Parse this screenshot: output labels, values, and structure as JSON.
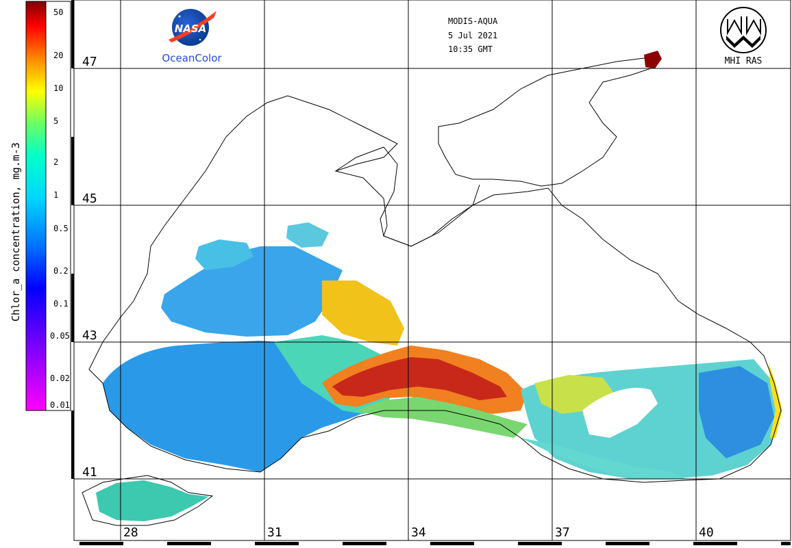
{
  "header": {
    "sensor": "MODIS-AQUA",
    "date": "5 Jul 2021",
    "time": "10:35 GMT"
  },
  "logos": {
    "nasa_text": "NASA",
    "oceancolor_text": "OceanColor",
    "mhi_text": "MHI RAS"
  },
  "colorbar": {
    "title": "Chlor_a concentration, mg.m-3",
    "ticks": [
      "50",
      "20",
      "10",
      "5",
      "2",
      "1",
      "0.5",
      "0.2",
      "0.1",
      "0.05",
      "0.02",
      "0.01"
    ],
    "colors": [
      "#ff00ff",
      "#8800ff",
      "#0000ff",
      "#0066ff",
      "#00ccff",
      "#00ffcc",
      "#66ff66",
      "#ffff00",
      "#ff8800",
      "#ff0000",
      "#880000"
    ]
  },
  "grid": {
    "latitudes": [
      "47",
      "45",
      "43",
      "41"
    ],
    "longitudes": [
      "28",
      "31",
      "34",
      "37",
      "40"
    ]
  },
  "colors": {
    "background": "#ffffff",
    "coast": "#000000",
    "nasa_blue": "#0b3d91",
    "nasa_red": "#fc3d21",
    "oceancolor_blue": "#1f4fd0"
  }
}
